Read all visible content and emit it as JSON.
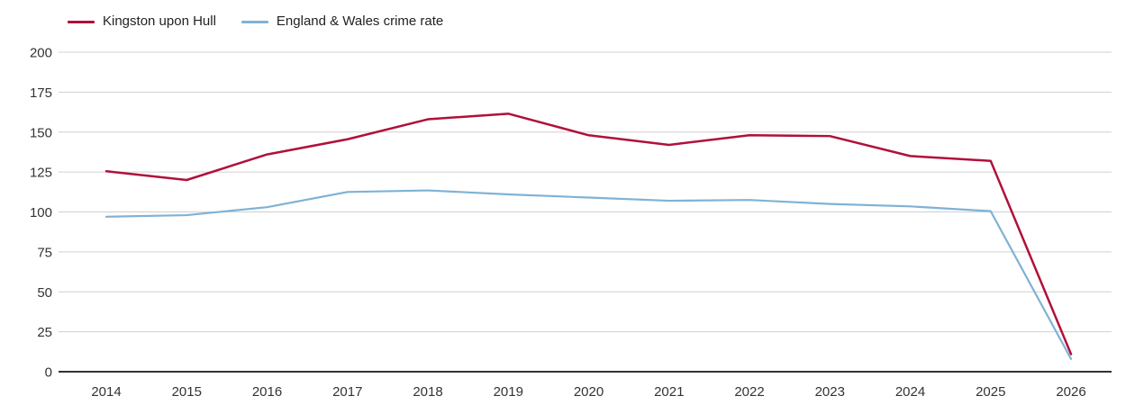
{
  "chart_data": {
    "type": "line",
    "title": "",
    "xlabel": "",
    "ylabel": "",
    "x": [
      2014,
      2015,
      2016,
      2017,
      2018,
      2019,
      2020,
      2021,
      2022,
      2023,
      2024,
      2025,
      2026
    ],
    "series": [
      {
        "name": "Kingston upon Hull",
        "color": "#b01039",
        "values": [
          125.5,
          120,
          136,
          145.5,
          158,
          161.5,
          148,
          142,
          148,
          147.5,
          135,
          132,
          11
        ]
      },
      {
        "name": "England & Wales crime rate",
        "color": "#7fb2d6",
        "values": [
          97,
          98,
          103,
          112.5,
          113.5,
          111,
          109,
          107,
          107.5,
          105,
          103.5,
          100.5,
          8
        ]
      }
    ],
    "ylim": [
      0,
      200
    ],
    "yticks": [
      0,
      25,
      50,
      75,
      100,
      125,
      150,
      175,
      200
    ],
    "grid": true,
    "legend_position": "top-left",
    "grid_color": "#d0d0d0",
    "axis_line_color": "#333333",
    "tick_label_color": "#333333"
  }
}
